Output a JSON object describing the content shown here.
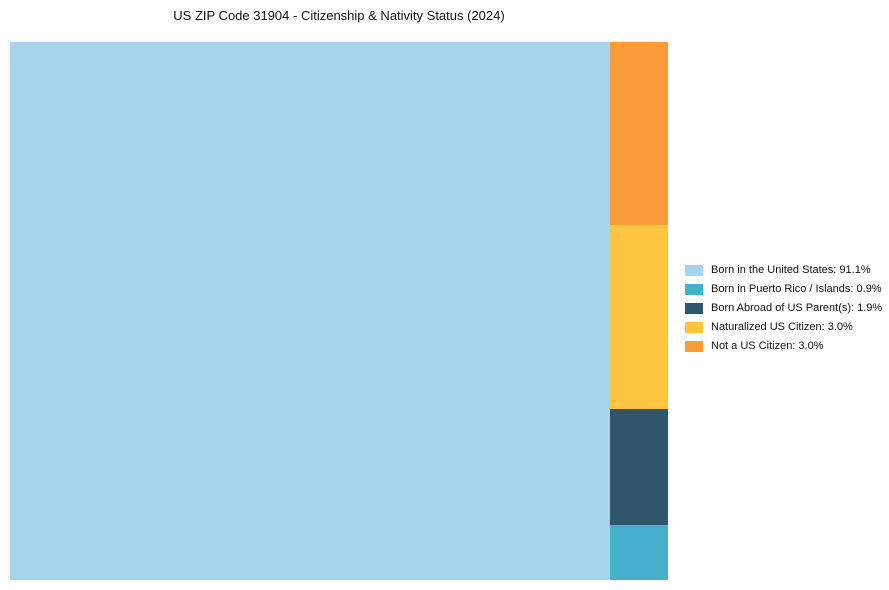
{
  "chart_data": {
    "type": "treemap",
    "title": "US ZIP Code 31904 - Citizenship & Nativity Status (2024)",
    "items": [
      {
        "label": "Born in the United States",
        "value": 91.1,
        "color": "#A6D4EA",
        "legend": "Born in the United States: 91.1%"
      },
      {
        "label": "Born in Puerto Rico / Islands",
        "value": 0.9,
        "color": "#46AFCB",
        "legend": "Born in Puerto Rico / Islands: 0.9%"
      },
      {
        "label": "Born Abroad of US Parent(s)",
        "value": 1.9,
        "color": "#2F566B",
        "legend": "Born Abroad of US Parent(s): 1.9%"
      },
      {
        "label": "Naturalized US Citizen",
        "value": 3.0,
        "color": "#FDC53F",
        "legend": "Naturalized US Citizen: 3.0%"
      },
      {
        "label": "Not a US Citizen",
        "value": 3.0,
        "color": "#F99B38",
        "legend": "Not a US Citizen: 3.0%"
      }
    ],
    "column_order_top_to_bottom": [
      4,
      3,
      2,
      1
    ],
    "legend_position": "right",
    "background": "#ffffff"
  }
}
